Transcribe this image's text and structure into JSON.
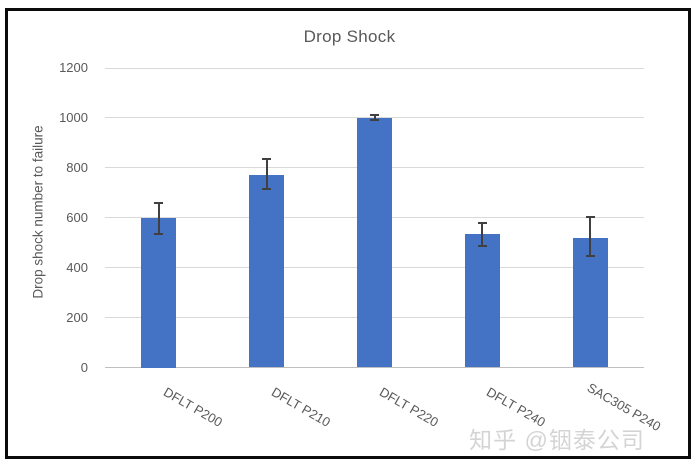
{
  "watermark": {
    "text": "知乎 @铟泰公司",
    "color": "#c6c6c6"
  },
  "chart_data": {
    "type": "bar",
    "title": "Drop Shock",
    "xlabel": "",
    "ylabel": "Drop shock number to failure",
    "categories": [
      "DFLT P200",
      "DFLT P210",
      "DFLT P220",
      "DFLT P240",
      "SAC305 P240"
    ],
    "values": [
      600,
      770,
      1000,
      535,
      520
    ],
    "error_plus": [
      60,
      65,
      10,
      45,
      85
    ],
    "error_minus": [
      65,
      55,
      10,
      50,
      75
    ],
    "ylim": [
      0,
      1200
    ],
    "yticks": [
      0,
      200,
      400,
      600,
      800,
      1000,
      1200
    ],
    "grid": true,
    "legend": "none",
    "bar_color": "#4472C4",
    "gridline_color": "#d9d9d9",
    "axis_line_color": "#bfbfbf",
    "text_color": "#595959",
    "error_bar_color": "#404040"
  }
}
